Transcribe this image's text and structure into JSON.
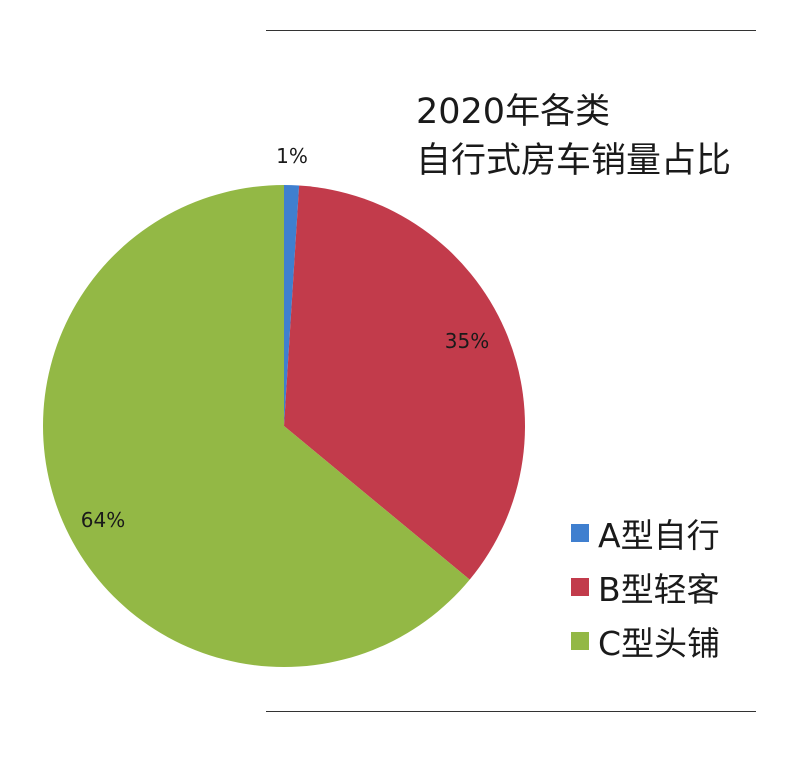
{
  "chart_data": {
    "type": "pie",
    "title": [
      "2020年各类",
      "自行式房车销量占比"
    ],
    "categories": [
      "A型自行",
      "B型轻客",
      "C型头铺"
    ],
    "values": [
      1,
      35,
      64
    ],
    "labels": [
      "1%",
      "35%",
      "64%"
    ],
    "colors": [
      "#3f7fcf",
      "#c23b4b",
      "#93b845"
    ],
    "legend_position": "bottom-right"
  }
}
